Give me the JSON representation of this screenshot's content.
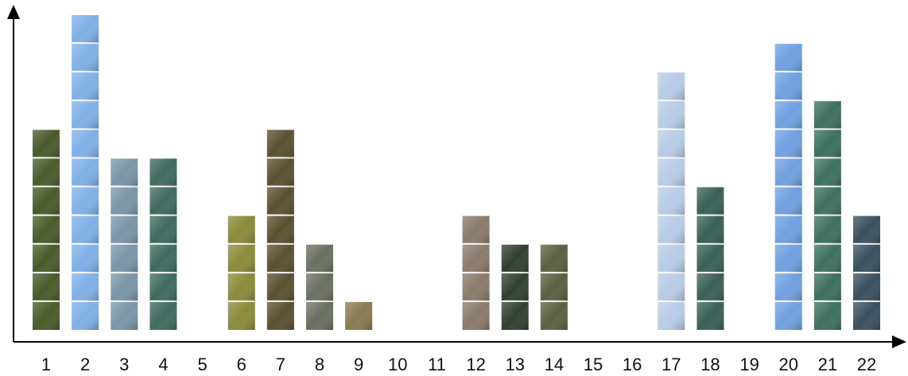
{
  "chart_data": {
    "type": "bar",
    "categories": [
      "1",
      "2",
      "3",
      "4",
      "5",
      "6",
      "7",
      "8",
      "9",
      "10",
      "11",
      "12",
      "13",
      "14",
      "15",
      "16",
      "17",
      "18",
      "19",
      "20",
      "21",
      "22"
    ],
    "values": [
      7,
      11,
      6,
      6,
      0,
      4,
      7,
      3,
      1,
      0,
      0,
      4,
      3,
      3,
      0,
      0,
      9,
      5,
      0,
      10,
      8,
      4
    ],
    "colors": [
      "#4a5a2a",
      "#7fb0e8",
      "#7a96a8",
      "#3f6a5f",
      "#999999",
      "#8a8a3a",
      "#5a5030",
      "#6a7060",
      "#8a7a50",
      "#999999",
      "#999999",
      "#8a7a6a",
      "#2f4030",
      "#5a6040",
      "#999999",
      "#999999",
      "#b8cce6",
      "#3a6058",
      "#999999",
      "#6fa0e0",
      "#3e7060",
      "#3a5060"
    ],
    "ylim": [
      0,
      11
    ]
  }
}
